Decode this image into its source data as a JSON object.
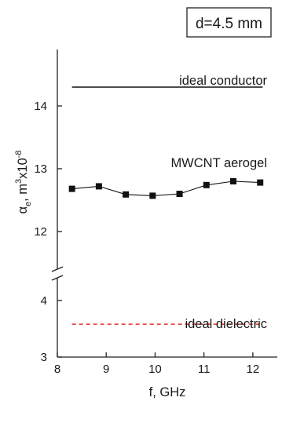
{
  "chart_data": {
    "type": "line",
    "panel_label": "d=4.5 mm",
    "xlabel": "f, GHz",
    "ylabel_base": "α",
    "ylabel_sub": "e",
    "ylabel_unit": ", m",
    "ylabel_pow": "3",
    "ylabel_mult": "x10",
    "ylabel_mult_pow": "-8",
    "xlim": [
      8,
      12.5
    ],
    "x_ticks": [
      8,
      9,
      10,
      11,
      12
    ],
    "x_tick_labels": [
      "8",
      "9",
      "10",
      "11",
      "12"
    ],
    "y_axis_broken": true,
    "upper_ylim": [
      11.4,
      14.9
    ],
    "upper_y_ticks": [
      12,
      13,
      14
    ],
    "upper_y_tick_labels": [
      "12",
      "13",
      "14"
    ],
    "lower_ylim": [
      3,
      4.4
    ],
    "lower_y_ticks": [
      3,
      4
    ],
    "lower_y_tick_labels": [
      "3",
      "4"
    ],
    "series": [
      {
        "name": "MWCNT aerogel",
        "style": "solid line with square markers",
        "color": "#111111",
        "x": [
          8.3,
          8.85,
          9.4,
          9.95,
          10.5,
          11.05,
          11.6,
          12.15
        ],
        "y": [
          12.68,
          12.72,
          12.59,
          12.57,
          12.6,
          12.74,
          12.8,
          12.78
        ]
      },
      {
        "name": "ideal conductor",
        "style": "solid",
        "color": "#111111",
        "x": [
          8.3,
          12.2
        ],
        "y": [
          14.3,
          14.3
        ]
      },
      {
        "name": "ideal dielectric",
        "style": "dashed",
        "color": "#e0302a",
        "x": [
          8.3,
          12.2
        ],
        "y": [
          3.58,
          3.58
        ]
      }
    ]
  }
}
